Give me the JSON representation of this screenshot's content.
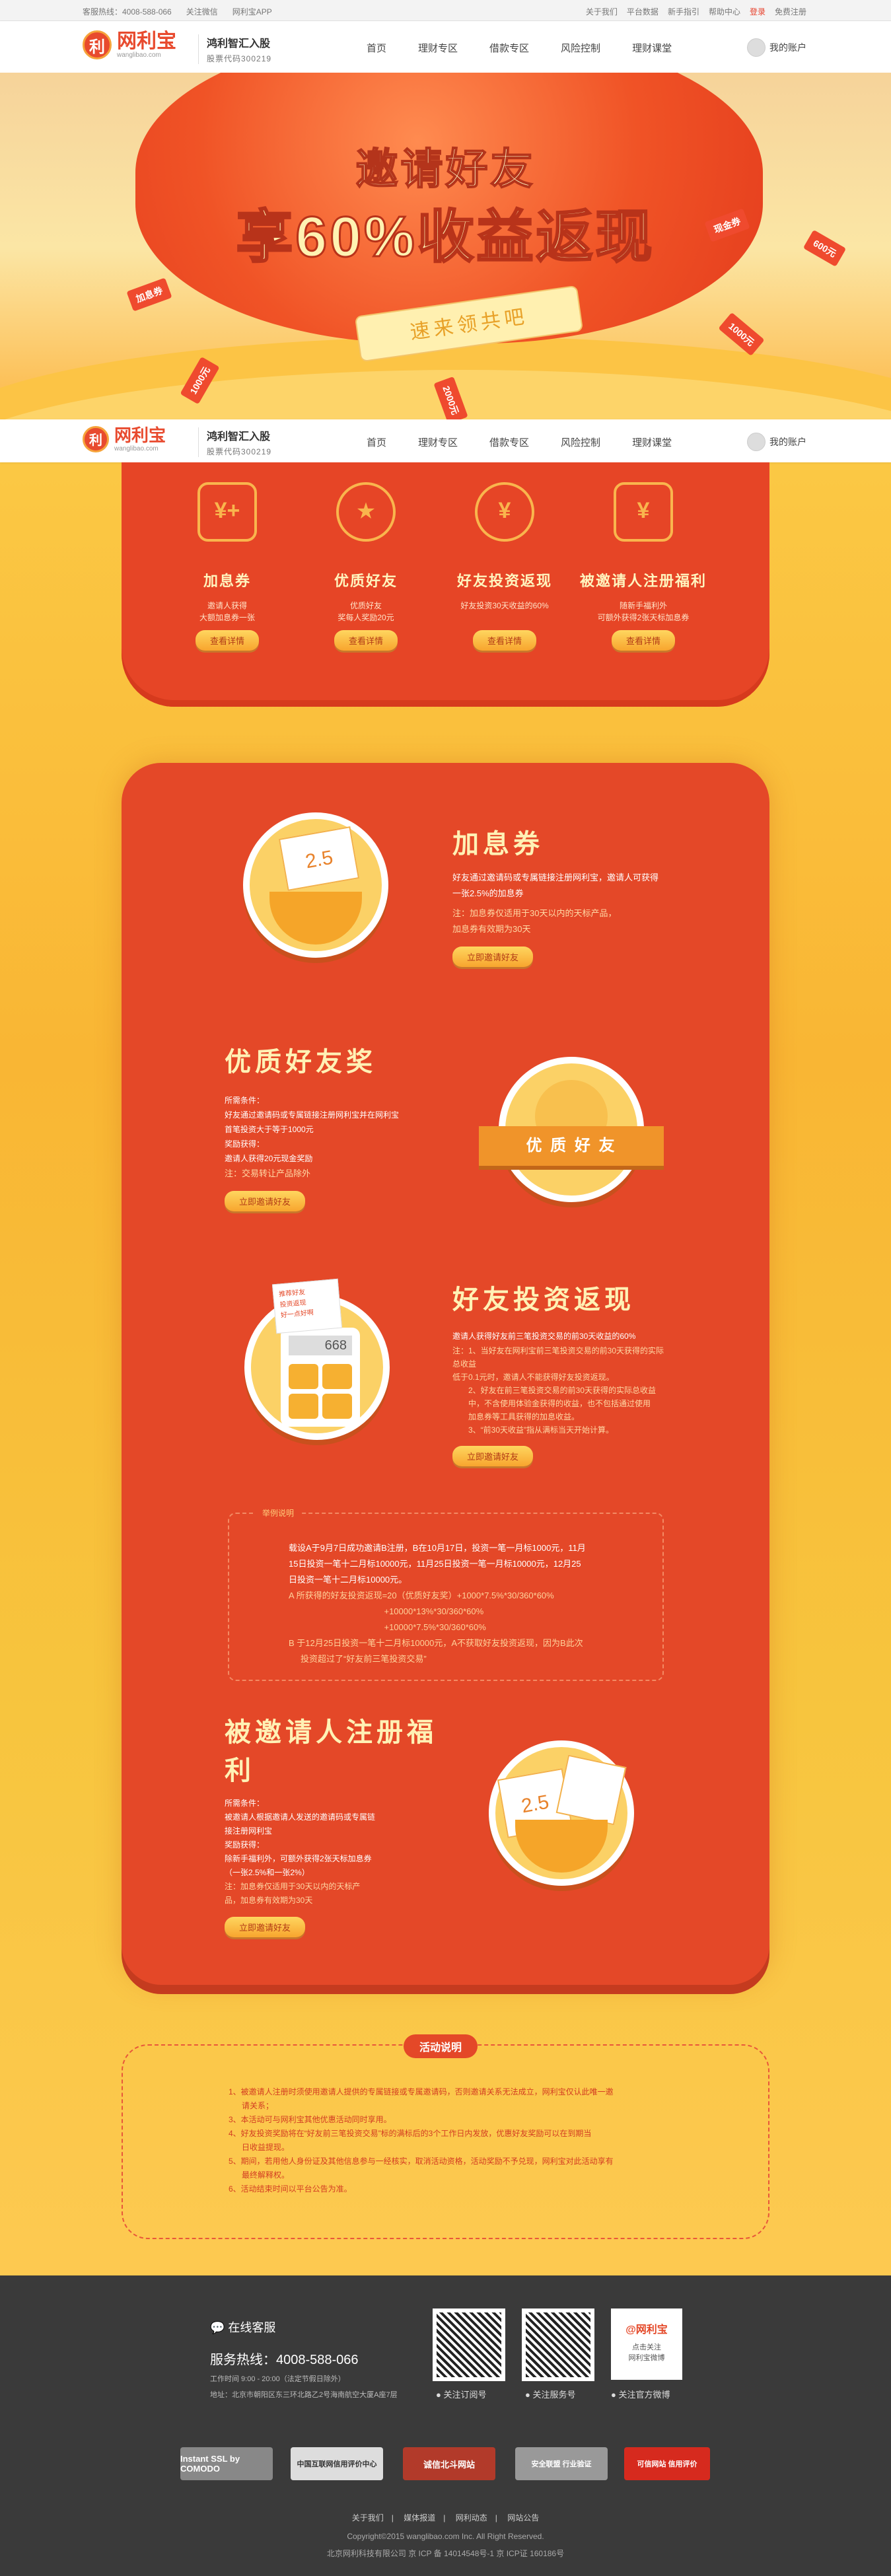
{
  "topbar": {
    "hotline": "客服热线：4008-588-066",
    "wechat": "关注微信",
    "app": "网利宝APP",
    "links": [
      "关于我们",
      "平台数据",
      "新手指引",
      "帮助中心"
    ],
    "login": "登录",
    "register": "免费注册"
  },
  "header": {
    "logo_text": "网利宝",
    "logo_badge": "利",
    "logo_url": "wanglibao.com",
    "slogan_main": "鸿利智汇入股",
    "slogan_sub": "股票代码300219",
    "nav": [
      "首页",
      "理财专区",
      "借款专区",
      "风险控制",
      "理财课堂"
    ],
    "account": "我的账户"
  },
  "hero": {
    "line1": "邀请好友",
    "line2": "享60%收益返现",
    "ribbon": "速来领共吧",
    "tickets": [
      "现金券",
      "600元",
      "1000元",
      "1000元",
      "2000元",
      "加息券"
    ]
  },
  "features": [
    {
      "icon": "¥+",
      "title": "加息券",
      "desc": "邀请人获得\n大额加息券一张",
      "btn": "查看详情"
    },
    {
      "icon": "★",
      "title": "优质好友",
      "desc": "优质好友\n奖每人奖励20元",
      "btn": "查看详情"
    },
    {
      "icon": "¥",
      "title": "好友投资返现",
      "desc": "好友投资30天收益的60%",
      "btn": "查看详情"
    },
    {
      "icon": "¥",
      "title": "被邀请人注册福利",
      "desc": "随新手福利外\n可额外获得2张天标加息券",
      "btn": "查看详情"
    }
  ],
  "sec1": {
    "title": "加息券",
    "text": "好友通过邀请码或专属链接注册网利宝，邀请人可获得一张2.5%的加息券",
    "note": "注：加息券仅适用于30天以内的天标产品，\n      加息券有效期为30天",
    "btn": "立即邀请好友",
    "coupon": "2.5"
  },
  "sec2": {
    "title": "优质好友奖",
    "text": "所需条件：\n好友通过邀请码或专属链接注册网利宝并在网利宝\n首笔投资大于等于1000元\n奖励获得：\n邀请人获得20元现金奖励",
    "note": "注：交易转让产品除外",
    "btn": "立即邀请好友",
    "banner": "优 质 好 友"
  },
  "sec3": {
    "title": "好友投资返现",
    "text": "邀请人获得好友前三笔投资交易的前30天收益的60%",
    "notes": [
      "注：1、当好友在网利宝前三笔投资交易的前30天获得的实际总收益\n           低于0.1元时，邀请人不能获得好友投资返现。",
      "2、好友在前三笔投资交易的前30天获得的实际总收益\n           中，不含使用体验金获得的收益，也不包括通过使用\n           加息券等工具获得的加息收益。",
      "3、“前30天收益”指从满标当天开始计算。"
    ],
    "btn": "立即邀请好友",
    "calc": "668",
    "sticky": "推荐好友\n投资返现\n好一点好啊"
  },
  "example": {
    "tag": "举例说明",
    "lines": [
      "载设A于9月7日成功邀请B注册，B在10月17日，投资一笔一月标1000元，11月",
      "15日投资一笔十二月标10000元，11月25日投资一笔一月标10000元，12月25",
      "日投资一笔十二月标10000元。",
      "A  所获得的好友投资返现=20（优质好友奖）+1000*7.5%*30/360*60%",
      "                                        +10000*13%*30/360*60%",
      "                                        +10000*7.5%*30/360*60%",
      "B  于12月25日投资一笔十二月标10000元，A不获取好友投资返现，因为B此次",
      "     投资超过了“好友前三笔投资交易”"
    ]
  },
  "sec4": {
    "title": "被邀请人注册福利",
    "text": "所需条件：\n被邀请人根据邀请人发送的邀请码或专属链\n接注册网利宝\n奖励获得：\n除新手福利外，可额外获得2张天标加息券\n（一张2.5%和一张2%）",
    "note": "注：加息券仅适用于30天以内的天标产\n      品，加息券有效期为30天",
    "btn": "立即邀请好友",
    "coupon": "2.5"
  },
  "rules": {
    "title": "活动说明",
    "items": [
      "1、被邀请人注册时须使用邀请人提供的专属链接或专属邀请码，否则邀请关系无法成立，网利宝仅认此唯一邀",
      "      请关系；",
      "3、本活动可与网利宝其他优惠活动同时享用。",
      "4、好友投资奖励将在“好友前三笔投资交易”标的满标后的3个工作日内发放，优惠好友奖励可以在到期当",
      "      日收益提现。",
      "5、期间，若用他人身份证及其他信息参与一经核实，取消活动资格，活动奖励不予兑现，网利宝对此活动享有",
      "      最终解释权。",
      "6、活动结束时间以平台公告为准。"
    ]
  },
  "footer": {
    "service_title": "在线客服",
    "hotline_label": "服务热线：",
    "hotline": "4008-588-066",
    "hours": "工作时间 9:00 - 20:00（法定节假日除外）",
    "address": "地址：北京市朝阳区东三环北路乙2号海南航空大厦A座7层",
    "qr_labels": [
      "关注订阅号",
      "关注服务号",
      "关注官方微博"
    ],
    "weibo_text": "点击关注\n网利宝微博",
    "weibo_brand": "@网利宝",
    "badges": [
      "Instant SSL by COMODO",
      "中国互联网信用评价中心",
      "诚信北斗网站",
      "安全联盟 行业验证",
      "可信网站 信用评价"
    ],
    "links": [
      "关于我们",
      "媒体报道",
      "网利动态",
      "网站公告"
    ],
    "copyright": "Copyright©2015 wanglibao.com Inc. All Right Reserved.",
    "icp": "北京网利科技有限公司 京 ICP 备 14014548号-1 京 ICP证 160186号"
  }
}
